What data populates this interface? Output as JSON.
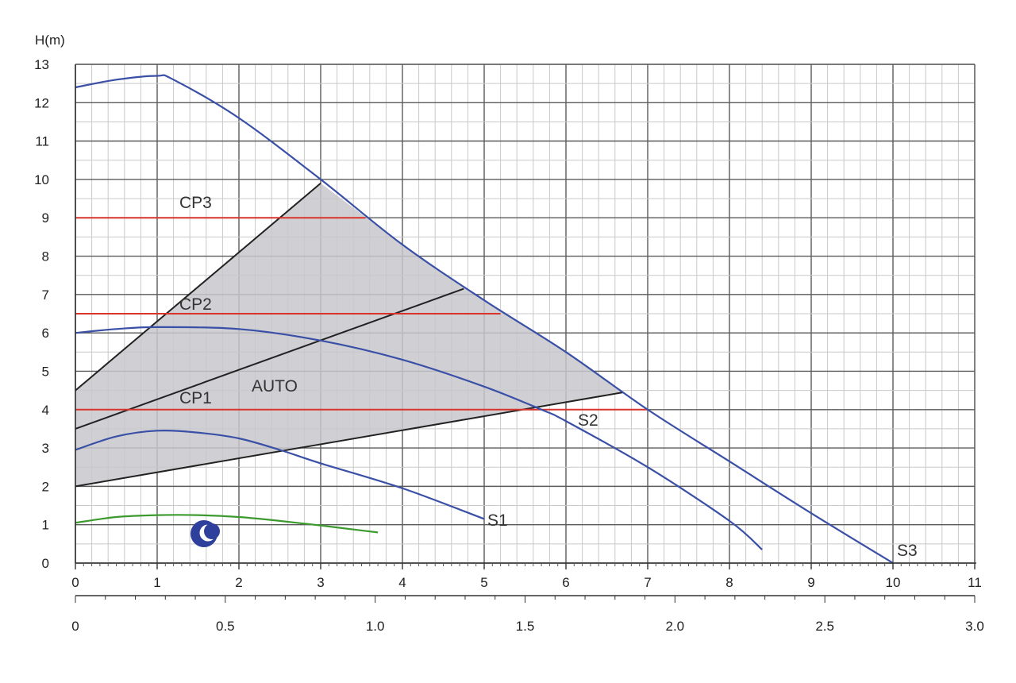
{
  "chart_data": {
    "type": "line",
    "ylabel": "H(m)",
    "xlim": [
      0,
      11
    ],
    "ylim": [
      0,
      13
    ],
    "x_ticks": [
      "0",
      "1",
      "2",
      "3",
      "4",
      "5",
      "6",
      "7",
      "8",
      "9",
      "10",
      "11"
    ],
    "y_ticks": [
      "0",
      "1",
      "2",
      "3",
      "4",
      "5",
      "6",
      "7",
      "8",
      "9",
      "10",
      "11",
      "12",
      "13"
    ],
    "secondary_x_ticks": [
      "0",
      "0.5",
      "1.0",
      "1.5",
      "2.0",
      "2.5",
      "3.0"
    ],
    "secondary_xlim": [
      0,
      3
    ],
    "grid": true,
    "series": [
      {
        "name": "S3",
        "color": "#3a4fa6",
        "x": [
          0,
          0.5,
          1.0,
          1.2,
          2.0,
          3.0,
          4.0,
          5.0,
          6.0,
          7.0,
          8.0,
          9.0,
          10.0
        ],
        "y": [
          12.4,
          12.6,
          12.7,
          12.6,
          11.6,
          10.0,
          8.3,
          6.85,
          5.5,
          4.0,
          2.65,
          1.3,
          0
        ]
      },
      {
        "name": "S2",
        "color": "#3a4fa6",
        "x": [
          0,
          0.5,
          1.0,
          2.0,
          3.0,
          4.0,
          5.0,
          5.7,
          6.0,
          7.0,
          8.0,
          8.4
        ],
        "y": [
          6.0,
          6.1,
          6.15,
          6.1,
          5.8,
          5.3,
          4.6,
          4.0,
          3.7,
          2.5,
          1.1,
          0.35
        ]
      },
      {
        "name": "S1",
        "color": "#3a4fa6",
        "x": [
          0,
          0.5,
          1.0,
          1.5,
          2.0,
          2.5,
          3.0,
          4.0,
          5.0
        ],
        "y": [
          2.95,
          3.3,
          3.45,
          3.4,
          3.25,
          2.95,
          2.6,
          1.95,
          1.15
        ]
      },
      {
        "name": "",
        "color": "#3c9a2e",
        "x": [
          0,
          0.5,
          1.0,
          1.5,
          2.0,
          2.5,
          3.0,
          3.5,
          3.7
        ],
        "y": [
          1.05,
          1.2,
          1.25,
          1.25,
          1.2,
          1.1,
          0.98,
          0.85,
          0.8
        ]
      }
    ],
    "constant_pressure_lines": [
      {
        "name": "CP3",
        "color": "#d9342b",
        "y": 9.0,
        "x": [
          0,
          3.55
        ]
      },
      {
        "name": "CP2",
        "color": "#d9342b",
        "y": 6.5,
        "x": [
          0,
          5.2
        ]
      },
      {
        "name": "CP1",
        "color": "#d9342b",
        "y": 4.0,
        "x": [
          0,
          7.0
        ]
      }
    ],
    "proportional_lines": [
      {
        "color": "#222222",
        "x": [
          0,
          3.0
        ],
        "y": [
          4.5,
          9.9
        ]
      },
      {
        "color": "#222222",
        "x": [
          0,
          4.75
        ],
        "y": [
          3.5,
          7.15
        ]
      },
      {
        "color": "#222222",
        "x": [
          0,
          6.7
        ],
        "y": [
          2.0,
          4.45
        ]
      }
    ],
    "auto_region": {
      "label": "AUTO",
      "fill": "#c8c8cc",
      "x": [
        0,
        3.0,
        4.0,
        5.0,
        6.0,
        6.7,
        0
      ],
      "y": [
        4.5,
        9.9,
        8.3,
        6.85,
        5.5,
        4.45,
        2.0
      ]
    },
    "annotations": {
      "cp3": "CP3",
      "cp2": "CP2",
      "cp1": "CP1",
      "auto": "AUTO",
      "s1": "S1",
      "s2": "S2",
      "s3": "S3"
    },
    "night_mode_icon": "moon-icon"
  }
}
